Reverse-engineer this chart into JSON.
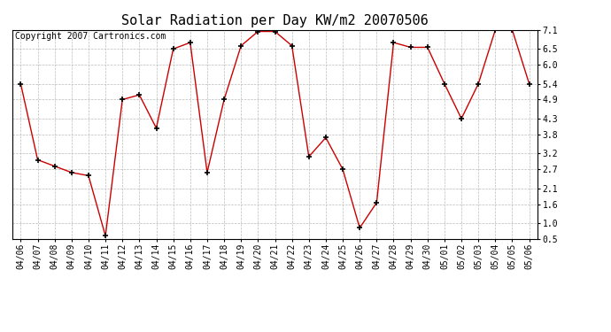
{
  "title": "Solar Radiation per Day KW/m2 20070506",
  "copyright_text": "Copyright 2007 Cartronics.com",
  "dates": [
    "04/06",
    "04/07",
    "04/08",
    "04/09",
    "04/10",
    "04/11",
    "04/12",
    "04/13",
    "04/14",
    "04/15",
    "04/16",
    "04/17",
    "04/18",
    "04/19",
    "04/20",
    "04/21",
    "04/22",
    "04/23",
    "04/24",
    "04/25",
    "04/26",
    "04/27",
    "04/28",
    "04/29",
    "04/30",
    "05/01",
    "05/02",
    "05/03",
    "05/04",
    "05/05",
    "05/06"
  ],
  "values": [
    5.4,
    3.0,
    2.8,
    2.6,
    2.5,
    0.6,
    4.9,
    5.05,
    4.0,
    6.5,
    6.7,
    2.6,
    4.9,
    6.6,
    7.05,
    7.05,
    6.6,
    3.1,
    3.7,
    2.7,
    0.85,
    1.65,
    6.7,
    6.55,
    6.55,
    5.4,
    4.3,
    5.4,
    7.1,
    7.1,
    5.4
  ],
  "line_color": "#cc0000",
  "marker": "+",
  "marker_color": "#000000",
  "background_color": "#ffffff",
  "plot_bg_color": "#ffffff",
  "grid_color": "#bbbbbb",
  "ylim": [
    0.5,
    7.1
  ],
  "yticks": [
    0.5,
    1.0,
    1.6,
    2.1,
    2.7,
    3.2,
    3.8,
    4.3,
    4.9,
    5.4,
    6.0,
    6.5,
    7.1
  ],
  "title_fontsize": 11,
  "tick_fontsize": 7,
  "copyright_fontsize": 7
}
